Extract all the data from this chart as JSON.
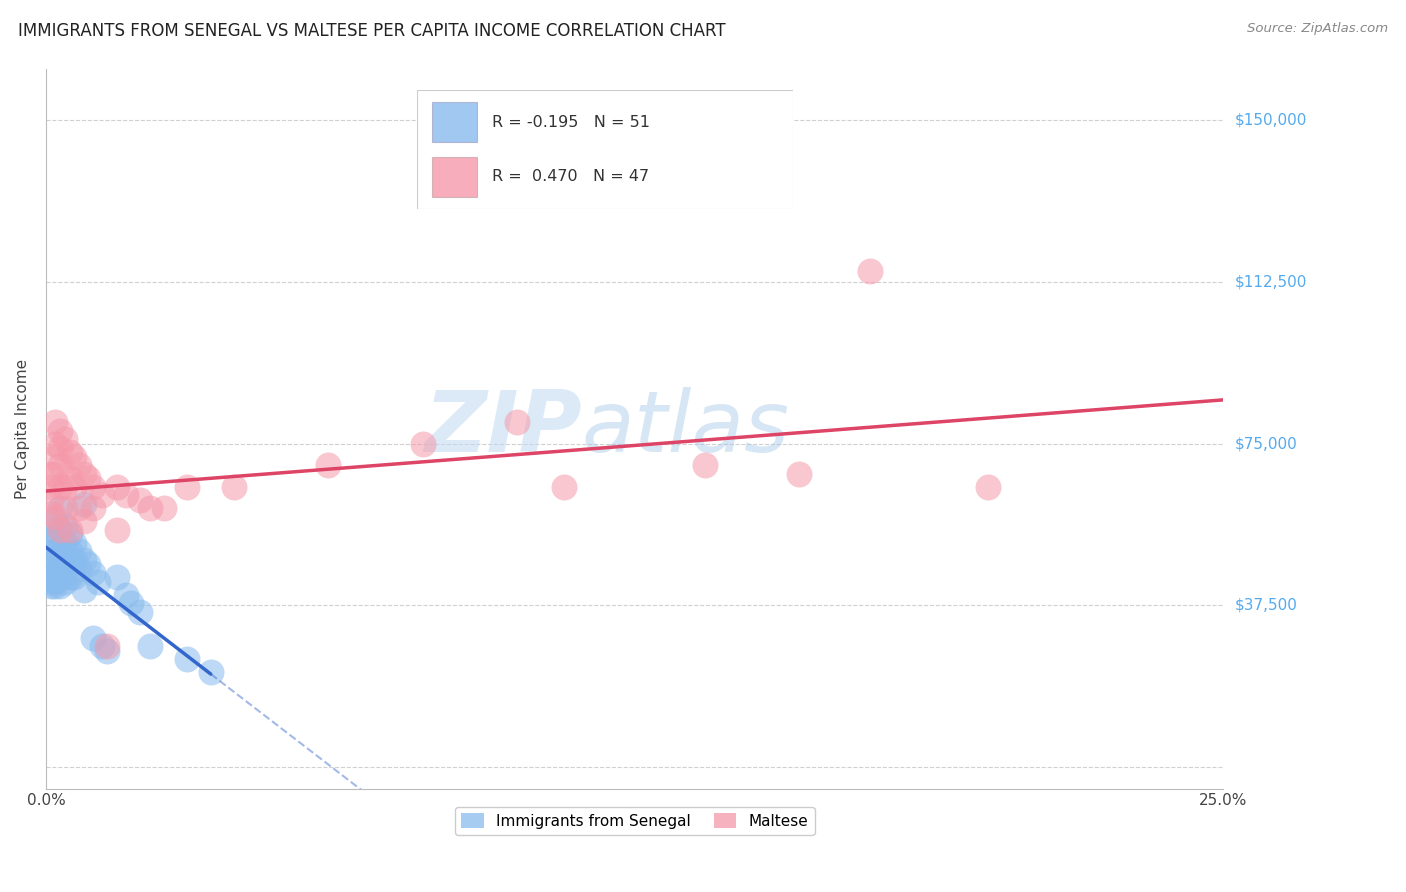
{
  "title": "IMMIGRANTS FROM SENEGAL VS MALTESE PER CAPITA INCOME CORRELATION CHART",
  "source": "Source: ZipAtlas.com",
  "ylabel": "Per Capita Income",
  "xlim": [
    0.0,
    0.25
  ],
  "ylim": [
    -5000,
    162000
  ],
  "yticks": [
    0,
    37500,
    75000,
    112500,
    150000
  ],
  "ytick_labels": [
    "",
    "$37,500",
    "$75,000",
    "$112,500",
    "$150,000"
  ],
  "xticks": [
    0.0,
    0.05,
    0.1,
    0.15,
    0.2,
    0.25
  ],
  "xtick_labels": [
    "0.0%",
    "",
    "",
    "",
    "",
    "25.0%"
  ],
  "legend_r1": "R = -0.195   N = 51",
  "legend_r2": "R =  0.470   N = 47",
  "watermark_zip": "ZIP",
  "watermark_atlas": "atlas",
  "background_color": "#ffffff",
  "grid_color": "#d0d0d0",
  "senegal_color": "#88bbee",
  "maltese_color": "#f599aa",
  "senegal_line_color": "#3366cc",
  "maltese_line_color": "#dd4466",
  "senegal_points": [
    [
      0.001,
      55000
    ],
    [
      0.001,
      52000
    ],
    [
      0.001,
      48000
    ],
    [
      0.001,
      46000
    ],
    [
      0.001,
      44000
    ],
    [
      0.001,
      43000
    ],
    [
      0.001,
      42000
    ],
    [
      0.002,
      57000
    ],
    [
      0.002,
      53000
    ],
    [
      0.002,
      50000
    ],
    [
      0.002,
      48000
    ],
    [
      0.002,
      45000
    ],
    [
      0.002,
      43000
    ],
    [
      0.002,
      42000
    ],
    [
      0.003,
      60000
    ],
    [
      0.003,
      55000
    ],
    [
      0.003,
      51000
    ],
    [
      0.003,
      49000
    ],
    [
      0.003,
      46000
    ],
    [
      0.003,
      44000
    ],
    [
      0.003,
      42000
    ],
    [
      0.004,
      56000
    ],
    [
      0.004,
      52000
    ],
    [
      0.004,
      48000
    ],
    [
      0.004,
      45000
    ],
    [
      0.004,
      43000
    ],
    [
      0.005,
      54000
    ],
    [
      0.005,
      50000
    ],
    [
      0.005,
      47000
    ],
    [
      0.005,
      44000
    ],
    [
      0.006,
      52000
    ],
    [
      0.006,
      48000
    ],
    [
      0.006,
      44000
    ],
    [
      0.007,
      50000
    ],
    [
      0.007,
      46000
    ],
    [
      0.008,
      61000
    ],
    [
      0.008,
      48000
    ],
    [
      0.008,
      41000
    ],
    [
      0.009,
      47000
    ],
    [
      0.01,
      45000
    ],
    [
      0.01,
      30000
    ],
    [
      0.011,
      43000
    ],
    [
      0.012,
      28000
    ],
    [
      0.013,
      27000
    ],
    [
      0.015,
      44000
    ],
    [
      0.017,
      40000
    ],
    [
      0.018,
      38000
    ],
    [
      0.02,
      36000
    ],
    [
      0.022,
      28000
    ],
    [
      0.03,
      25000
    ],
    [
      0.035,
      22000
    ]
  ],
  "maltese_points": [
    [
      0.001,
      68000
    ],
    [
      0.001,
      65000
    ],
    [
      0.001,
      62000
    ],
    [
      0.001,
      59000
    ],
    [
      0.002,
      80000
    ],
    [
      0.002,
      75000
    ],
    [
      0.002,
      72000
    ],
    [
      0.002,
      68000
    ],
    [
      0.002,
      58000
    ],
    [
      0.003,
      78000
    ],
    [
      0.003,
      74000
    ],
    [
      0.003,
      70000
    ],
    [
      0.003,
      65000
    ],
    [
      0.003,
      55000
    ],
    [
      0.004,
      76000
    ],
    [
      0.004,
      65000
    ],
    [
      0.004,
      60000
    ],
    [
      0.005,
      73000
    ],
    [
      0.005,
      67000
    ],
    [
      0.005,
      55000
    ],
    [
      0.006,
      72000
    ],
    [
      0.006,
      65000
    ],
    [
      0.007,
      70000
    ],
    [
      0.007,
      60000
    ],
    [
      0.008,
      68000
    ],
    [
      0.008,
      57000
    ],
    [
      0.009,
      67000
    ],
    [
      0.01,
      65000
    ],
    [
      0.01,
      60000
    ],
    [
      0.012,
      63000
    ],
    [
      0.013,
      28000
    ],
    [
      0.015,
      65000
    ],
    [
      0.015,
      55000
    ],
    [
      0.017,
      63000
    ],
    [
      0.02,
      62000
    ],
    [
      0.022,
      60000
    ],
    [
      0.025,
      60000
    ],
    [
      0.03,
      65000
    ],
    [
      0.04,
      65000
    ],
    [
      0.06,
      70000
    ],
    [
      0.08,
      75000
    ],
    [
      0.1,
      80000
    ],
    [
      0.11,
      65000
    ],
    [
      0.14,
      70000
    ],
    [
      0.16,
      68000
    ],
    [
      0.175,
      115000
    ],
    [
      0.2,
      65000
    ]
  ]
}
